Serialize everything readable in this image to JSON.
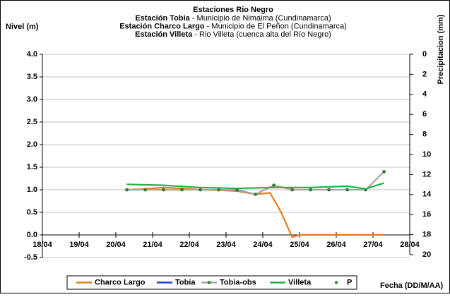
{
  "chart_data": {
    "type": "line",
    "title": "Estaciones Rio Negro",
    "subtitle_lines": [
      {
        "bold": "Estación Tobia",
        "text": " - Municipio de Nimaima (Cundinamarca)"
      },
      {
        "bold": "Estación Charco Largo",
        "text": " - Municipio de El Peñon (Cundinamarca)"
      },
      {
        "bold": "Estación Villeta",
        "text": " -  Rio Villeta (cuenca alta del Río Negro)"
      }
    ],
    "y_label": "Nivel (m)",
    "y2_label": "Precipitacion (mm)",
    "x_label": "Fecha (DD/M/AA)",
    "xlim": [
      18,
      28
    ],
    "xticks": [
      {
        "value": 18,
        "label": "18/04"
      },
      {
        "value": 19,
        "label": "19/04"
      },
      {
        "value": 20,
        "label": "20/04"
      },
      {
        "value": 21,
        "label": "21/04"
      },
      {
        "value": 22,
        "label": "22/04"
      },
      {
        "value": 23,
        "label": "23/04"
      },
      {
        "value": 24,
        "label": "24/04"
      },
      {
        "value": 25,
        "label": "25/04"
      },
      {
        "value": 26,
        "label": "26/04"
      },
      {
        "value": 27,
        "label": "27/04"
      },
      {
        "value": 28,
        "label": "28/04"
      }
    ],
    "ylim": [
      -0.5,
      4.0
    ],
    "yticks": [
      {
        "value": 4.0,
        "label": "4.0"
      },
      {
        "value": 3.5,
        "label": "3.5"
      },
      {
        "value": 3.0,
        "label": "3.0"
      },
      {
        "value": 2.5,
        "label": "2.5"
      },
      {
        "value": 2.0,
        "label": "2.0"
      },
      {
        "value": 1.5,
        "label": "1.5"
      },
      {
        "value": 1.0,
        "label": "1.0"
      },
      {
        "value": 0.5,
        "label": "0.5"
      },
      {
        "value": 0,
        "label": "0.0"
      },
      {
        "value": -0.5,
        "label": "-0.5"
      }
    ],
    "y2lim": [
      20,
      0
    ],
    "y2ticks": [
      0,
      2,
      4,
      6,
      8,
      10,
      12,
      14,
      16,
      18,
      20
    ],
    "grid": true,
    "series": [
      {
        "name": "Charco Largo",
        "color": "#e07b20",
        "markers": false,
        "x": [
          20.3,
          20.8,
          21.3,
          21.8,
          22.3,
          22.8,
          23.3,
          23.8,
          24.2,
          24.5,
          24.8,
          25.0,
          25.5,
          26.0,
          26.5,
          27.0,
          27.3
        ],
        "values": [
          1.0,
          1.02,
          1.05,
          1.03,
          1.0,
          0.99,
          0.97,
          0.9,
          0.93,
          0.5,
          -0.05,
          0,
          0,
          0,
          0,
          0,
          0
        ]
      },
      {
        "name": "Tobia",
        "color": "#1f3fd0",
        "markers": false,
        "x": [],
        "values": []
      },
      {
        "name": "Tobia-obs",
        "color": "#a6a6a6",
        "marker_color": "#2e7d32",
        "markers": true,
        "x": [
          20.3,
          20.8,
          21.3,
          21.8,
          22.3,
          22.8,
          23.3,
          23.8,
          24.3,
          24.8,
          25.3,
          25.8,
          26.3,
          26.8,
          27.3
        ],
        "values": [
          1.0,
          1.0,
          1.0,
          1.0,
          1.0,
          1.0,
          1.0,
          0.9,
          1.1,
          1.0,
          1.0,
          1.0,
          1.0,
          1.0,
          1.4
        ]
      },
      {
        "name": "Villeta",
        "color": "#22b04b",
        "markers": false,
        "x": [
          20.3,
          21.3,
          22.3,
          23.3,
          24.3,
          25.3,
          26.3,
          26.8,
          27.3
        ],
        "values": [
          1.12,
          1.1,
          1.05,
          1.03,
          1.05,
          1.05,
          1.08,
          1.02,
          1.15
        ]
      },
      {
        "name": "P",
        "color": "#2e7d32",
        "markers": "only",
        "axis": "y2",
        "x": [],
        "values": []
      }
    ]
  }
}
